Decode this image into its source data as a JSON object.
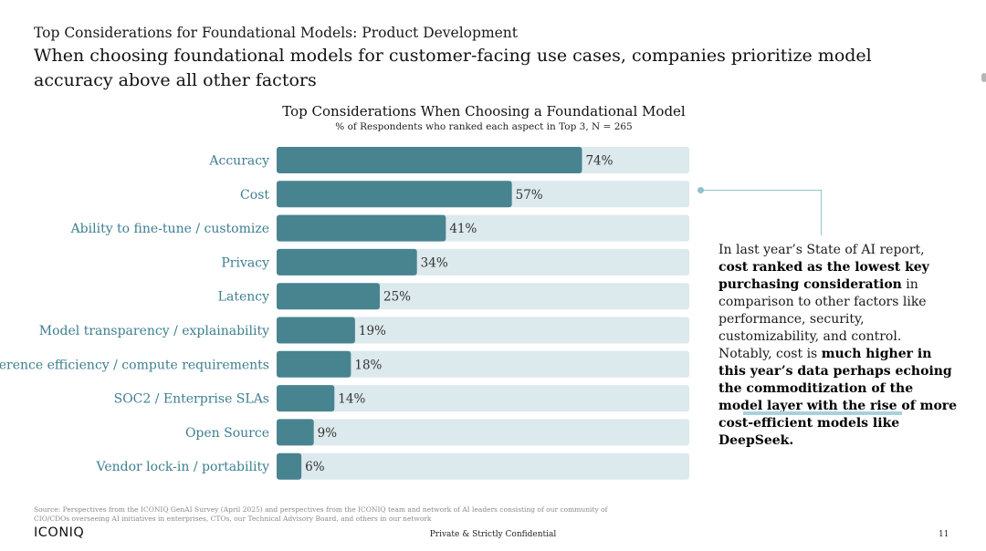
{
  "header": {
    "kicker": "Top Considerations for Foundational Models: Product Development",
    "headline": "When choosing foundational models for customer-facing use cases, companies prioritize model accuracy above all other factors"
  },
  "chart_data": {
    "type": "bar",
    "orientation": "horizontal",
    "title": "Top Considerations When Choosing a Foundational Model",
    "subtitle": "% of Respondents who ranked each aspect in Top 3, N = 265",
    "categories": [
      "Accuracy",
      "Cost",
      "Ability to fine-tune / customize",
      "Privacy",
      "Latency",
      "Model transparency / explainability",
      "Inference efficiency / compute requirements",
      "SOC2 / Enterprise SLAs",
      "Open Source",
      "Vendor lock-in / portability"
    ],
    "values": [
      74,
      57,
      41,
      34,
      25,
      19,
      18,
      14,
      9,
      6
    ],
    "value_labels": [
      "74%",
      "57%",
      "41%",
      "34%",
      "25%",
      "19%",
      "18%",
      "14%",
      "9%",
      "6%"
    ],
    "xlim": [
      0,
      100
    ],
    "bar_color": "#47848f",
    "track_color": "#dce9ed",
    "label_color": "#3d7f8f"
  },
  "callout": {
    "p1": "In last year’s State of AI report, ",
    "b1": "cost ranked as the lowest key purchasing consideration",
    "p2": " in comparison to other factors like performance, security, customizability, and control.  Notably, cost is ",
    "b2": "much higher in this year’s data perhaps echoing the commoditization of the model layer with the rise of more cost-efficient models like DeepSeek."
  },
  "footer": {
    "source": "Source: Perspectives from the ICONIQ GenAI Survey (April 2025) and perspectives from the ICONIQ team and network of AI leaders consisting of our community of CIO/CDOs overseeing AI initiatives in enterprises, CTOs, our Technical Advisory Board, and others in our network",
    "logo": "ICONIQ",
    "confidential": "Private & Strictly Confidential",
    "page_number": "11"
  }
}
